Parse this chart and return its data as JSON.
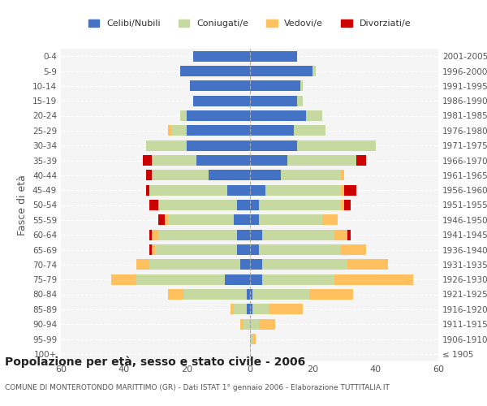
{
  "age_groups": [
    "100+",
    "95-99",
    "90-94",
    "85-89",
    "80-84",
    "75-79",
    "70-74",
    "65-69",
    "60-64",
    "55-59",
    "50-54",
    "45-49",
    "40-44",
    "35-39",
    "30-34",
    "25-29",
    "20-24",
    "15-19",
    "10-14",
    "5-9",
    "0-4"
  ],
  "birth_years": [
    "≤ 1905",
    "1906-1910",
    "1911-1915",
    "1916-1920",
    "1921-1925",
    "1926-1930",
    "1931-1935",
    "1936-1940",
    "1941-1945",
    "1946-1950",
    "1951-1955",
    "1956-1960",
    "1961-1965",
    "1966-1970",
    "1971-1975",
    "1976-1980",
    "1981-1985",
    "1986-1990",
    "1991-1995",
    "1996-2000",
    "2001-2005"
  ],
  "male": {
    "celibi": [
      0,
      0,
      0,
      1,
      1,
      8,
      3,
      4,
      4,
      5,
      4,
      7,
      13,
      17,
      20,
      20,
      20,
      18,
      19,
      22,
      18
    ],
    "coniugati": [
      0,
      0,
      2,
      4,
      20,
      28,
      29,
      26,
      25,
      21,
      25,
      25,
      18,
      14,
      13,
      5,
      2,
      0,
      0,
      0,
      0
    ],
    "vedovi": [
      0,
      0,
      1,
      1,
      5,
      8,
      4,
      1,
      2,
      1,
      0,
      0,
      0,
      0,
      0,
      1,
      0,
      0,
      0,
      0,
      0
    ],
    "divorziati": [
      0,
      0,
      0,
      0,
      0,
      0,
      0,
      1,
      1,
      2,
      3,
      1,
      2,
      3,
      0,
      0,
      0,
      0,
      0,
      0,
      0
    ]
  },
  "female": {
    "nubili": [
      0,
      0,
      0,
      1,
      1,
      4,
      4,
      3,
      4,
      3,
      3,
      5,
      10,
      12,
      15,
      14,
      18,
      15,
      16,
      20,
      15
    ],
    "coniugate": [
      0,
      1,
      3,
      5,
      18,
      23,
      27,
      26,
      23,
      20,
      26,
      24,
      19,
      22,
      25,
      10,
      5,
      2,
      1,
      1,
      0
    ],
    "vedove": [
      0,
      1,
      5,
      11,
      14,
      25,
      13,
      8,
      4,
      5,
      1,
      1,
      1,
      0,
      0,
      0,
      0,
      0,
      0,
      0,
      0
    ],
    "divorziate": [
      0,
      0,
      0,
      0,
      0,
      0,
      0,
      0,
      1,
      0,
      2,
      4,
      0,
      3,
      0,
      0,
      0,
      0,
      0,
      0,
      0
    ]
  },
  "colors": {
    "celibi": "#4472C4",
    "coniugati": "#c5d9a0",
    "vedovi": "#ffc060",
    "divorziati": "#cc0000"
  },
  "xlim": 60,
  "title": "Popolazione per età, sesso e stato civile - 2006",
  "subtitle": "COMUNE DI MONTEROTONDO MARITTIMO (GR) - Dati ISTAT 1° gennaio 2006 - Elaborazione TUTTITALIA.IT",
  "ylabel_left": "Fasce di età",
  "legend_labels": [
    "Celibi/Nubili",
    "Coniugati/e",
    "Vedovi/e",
    "Divorziati/e"
  ],
  "bg_color": "#ffffff",
  "bar_height": 0.7
}
